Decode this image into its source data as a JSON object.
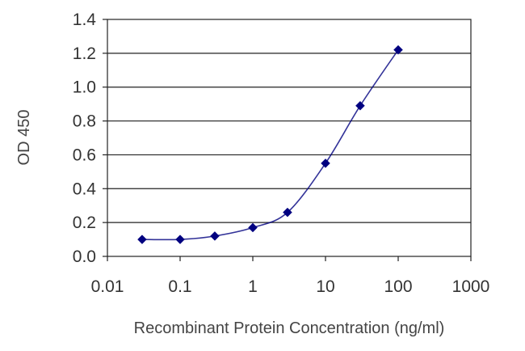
{
  "chart_data": {
    "type": "line",
    "xlabel": "Recombinant Protein Concentration (ng/ml)",
    "ylabel": "OD 450",
    "x_scale": "log",
    "xlim": [
      0.01,
      1000
    ],
    "ylim": [
      0.0,
      1.4
    ],
    "x_ticks": [
      {
        "value": 0.01,
        "label": "0.01"
      },
      {
        "value": 0.1,
        "label": "0.1"
      },
      {
        "value": 1,
        "label": "1"
      },
      {
        "value": 10,
        "label": "10"
      },
      {
        "value": 100,
        "label": "100"
      },
      {
        "value": 1000,
        "label": "1000"
      }
    ],
    "y_ticks": [
      {
        "value": 0.0,
        "label": "0.0"
      },
      {
        "value": 0.2,
        "label": "0.2"
      },
      {
        "value": 0.4,
        "label": "0.4"
      },
      {
        "value": 0.6,
        "label": "0.6"
      },
      {
        "value": 0.8,
        "label": "0.8"
      },
      {
        "value": 1.0,
        "label": "1.0"
      },
      {
        "value": 1.2,
        "label": "1.2"
      },
      {
        "value": 1.4,
        "label": "1.4"
      }
    ],
    "grid": "horizontal",
    "series": [
      {
        "x": [
          0.03,
          0.1,
          0.3,
          1,
          3,
          10,
          30,
          100
        ],
        "y": [
          0.1,
          0.1,
          0.12,
          0.17,
          0.26,
          0.55,
          0.89,
          1.22
        ],
        "color": "#000080",
        "marker": "diamond"
      }
    ]
  }
}
